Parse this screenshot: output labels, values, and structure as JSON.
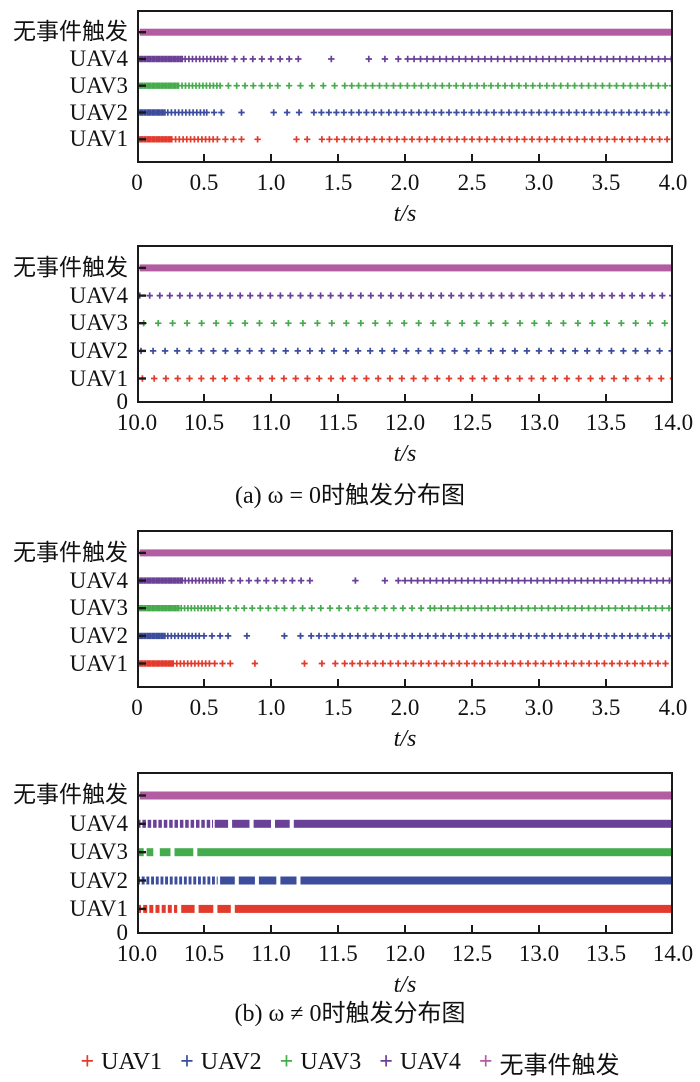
{
  "captions": {
    "a": "(a) ω = 0时触发分布图",
    "b": "(b) ω ≠ 0时触发分布图"
  },
  "legend": {
    "items": [
      {
        "label": "UAV1",
        "marker": "+",
        "color": "#e23a2c"
      },
      {
        "label": "UAV2",
        "marker": "+",
        "color": "#3c4d9e"
      },
      {
        "label": "UAV3",
        "marker": "+",
        "color": "#46ab4c"
      },
      {
        "label": "UAV4",
        "marker": "+",
        "color": "#6b4097"
      },
      {
        "label": "无事件触发",
        "marker": "+",
        "color": "#b25da2"
      }
    ]
  },
  "chart_data": [
    {
      "id": "a-early",
      "type": "scatter",
      "title": "",
      "xlabel": "t/s",
      "xlim": [
        0,
        4.0
      ],
      "xticks": {
        "values": [
          0,
          0.5,
          1.0,
          1.5,
          2.0,
          2.5,
          3.0,
          3.5,
          4.0
        ],
        "labels": [
          "0",
          "0.5",
          "1.0",
          "1.5",
          "2.0",
          "2.5",
          "3.0",
          "3.5",
          "4.0"
        ]
      },
      "ytick0": null,
      "grid": false,
      "rows": [
        {
          "label": "无事件触发",
          "color": "#b25da2",
          "marker": "+",
          "bands": [
            [
              0.02,
              4.0
            ]
          ]
        },
        {
          "label": "UAV4",
          "color": "#6b4097",
          "marker": "+",
          "markers_segments": [
            [
              0,
              0.35,
              0.013
            ],
            [
              0.36,
              0.64,
              0.027
            ],
            [
              0.66,
              1.26,
              0.068
            ],
            [
              2.02,
              4.0,
              0.048
            ]
          ],
          "markers_extra": [
            1.45,
            1.73,
            1.85,
            1.95
          ]
        },
        {
          "label": "UAV3",
          "color": "#46ab4c",
          "marker": "+",
          "markers_segments": [
            [
              0,
              0.3,
              0.013
            ],
            [
              0.31,
              0.6,
              0.026
            ],
            [
              0.62,
              1.0,
              0.062
            ],
            [
              1.05,
              1.5,
              0.085
            ],
            [
              1.55,
              4.0,
              0.052
            ]
          ]
        },
        {
          "label": "UAV2",
          "color": "#3c4d9e",
          "marker": "+",
          "markers_segments": [
            [
              0,
              0.22,
              0.013
            ],
            [
              0.23,
              0.5,
              0.027
            ],
            [
              0.52,
              0.68,
              0.055
            ],
            [
              1.32,
              4.0,
              0.056
            ]
          ],
          "markers_extra": [
            0.78,
            1.02,
            1.12,
            1.21
          ]
        },
        {
          "label": "UAV1",
          "color": "#e23a2c",
          "marker": "+",
          "markers_segments": [
            [
              0,
              0.25,
              0.013
            ],
            [
              0.26,
              0.58,
              0.028
            ],
            [
              0.6,
              0.78,
              0.06
            ],
            [
              1.38,
              4.0,
              0.056
            ]
          ],
          "markers_extra": [
            0.9,
            1.19,
            1.27
          ]
        }
      ]
    },
    {
      "id": "a-late",
      "type": "scatter",
      "title": "",
      "xlabel": "t/s",
      "xlim": [
        10.0,
        14.0
      ],
      "xticks": {
        "values": [
          10.0,
          10.5,
          11.0,
          11.5,
          12.0,
          12.5,
          13.0,
          13.5,
          14.0
        ],
        "labels": [
          "10.0",
          "10.5",
          "11.0",
          "11.5",
          "12.0",
          "12.5",
          "13.0",
          "13.5",
          "14.0"
        ]
      },
      "ytick0": "0",
      "grid": false,
      "rows": [
        {
          "label": "无事件触发",
          "color": "#b25da2",
          "marker": "+",
          "bands": [
            [
              10.02,
              14.0
            ]
          ]
        },
        {
          "label": "UAV4",
          "color": "#6b4097",
          "marker": "+",
          "markers_segments": [
            [
              10.02,
              14.0,
              0.075
            ]
          ]
        },
        {
          "label": "UAV3",
          "color": "#46ab4c",
          "marker": "+",
          "markers_segments": [
            [
              10.05,
              14.0,
              0.108
            ]
          ]
        },
        {
          "label": "UAV2",
          "color": "#3c4d9e",
          "marker": "+",
          "markers_segments": [
            [
              10.03,
              14.0,
              0.09
            ]
          ]
        },
        {
          "label": "UAV1",
          "color": "#e23a2c",
          "marker": "+",
          "markers_segments": [
            [
              10.04,
              14.0,
              0.088
            ]
          ]
        }
      ]
    },
    {
      "id": "b-early",
      "type": "scatter",
      "title": "",
      "xlabel": "t/s",
      "xlim": [
        0,
        4.0
      ],
      "xticks": {
        "values": [
          0,
          0.5,
          1.0,
          1.5,
          2.0,
          2.5,
          3.0,
          3.5,
          4.0
        ],
        "labels": [
          "0",
          "0.5",
          "1.0",
          "1.5",
          "2.0",
          "2.5",
          "3.0",
          "3.5",
          "4.0"
        ]
      },
      "ytick0": null,
      "grid": false,
      "rows": [
        {
          "label": "无事件触发",
          "color": "#b25da2",
          "marker": "+",
          "bands": [
            [
              0.02,
              4.0
            ]
          ]
        },
        {
          "label": "UAV4",
          "color": "#6b4097",
          "marker": "+",
          "markers_segments": [
            [
              0,
              0.35,
              0.013
            ],
            [
              0.36,
              0.62,
              0.026
            ],
            [
              0.64,
              1.32,
              0.065
            ],
            [
              2.0,
              4.0,
              0.047
            ]
          ],
          "markers_extra": [
            1.63,
            1.85,
            1.95
          ]
        },
        {
          "label": "UAV3",
          "color": "#46ab4c",
          "marker": "+",
          "markers_segments": [
            [
              0,
              0.32,
              0.013
            ],
            [
              0.33,
              0.6,
              0.025
            ],
            [
              0.62,
              1.05,
              0.06
            ],
            [
              1.1,
              2.2,
              0.068
            ],
            [
              2.22,
              4.0,
              0.05
            ]
          ]
        },
        {
          "label": "UAV2",
          "color": "#3c4d9e",
          "marker": "+",
          "markers_segments": [
            [
              0,
              0.22,
              0.013
            ],
            [
              0.23,
              0.48,
              0.026
            ],
            [
              0.5,
              0.7,
              0.06
            ],
            [
              1.3,
              4.0,
              0.058
            ]
          ],
          "markers_extra": [
            0.82,
            1.1,
            1.22
          ]
        },
        {
          "label": "UAV1",
          "color": "#e23a2c",
          "marker": "+",
          "markers_segments": [
            [
              0,
              0.26,
              0.013
            ],
            [
              0.27,
              0.56,
              0.027
            ],
            [
              0.58,
              0.75,
              0.058
            ],
            [
              1.55,
              4.0,
              0.057
            ]
          ],
          "markers_extra": [
            0.88,
            1.25,
            1.38,
            1.48
          ]
        }
      ]
    },
    {
      "id": "b-late",
      "type": "scatter",
      "title": "",
      "xlabel": "t/s",
      "xlim": [
        10.0,
        14.0
      ],
      "xticks": {
        "values": [
          10.0,
          10.5,
          11.0,
          11.5,
          12.0,
          12.5,
          13.0,
          13.5,
          14.0
        ],
        "labels": [
          "10.0",
          "10.5",
          "11.0",
          "11.5",
          "12.0",
          "12.5",
          "13.0",
          "13.5",
          "14.0"
        ]
      },
      "ytick0": "0",
      "grid": false,
      "rows": [
        {
          "label": "无事件触发",
          "color": "#b25da2",
          "marker": "+",
          "bands": [
            [
              10.02,
              14.0
            ]
          ]
        },
        {
          "label": "UAV4",
          "color": "#6b4097",
          "marker": "+",
          "dash_bands": [
            {
              "from": 10.0,
              "to": 10.56,
              "dash": 0.026,
              "gap": 0.014
            }
          ],
          "bands": [
            [
              10.58,
              10.68
            ],
            [
              10.71,
              10.84
            ],
            [
              10.87,
              11.0
            ],
            [
              11.03,
              11.14
            ],
            [
              11.17,
              14.0
            ]
          ]
        },
        {
          "label": "UAV3",
          "color": "#46ab4c",
          "marker": "+",
          "dash_bands": [
            {
              "from": 10.0,
              "to": 10.14,
              "dash": 0.05,
              "gap": 0.022
            }
          ],
          "bands": [
            [
              10.17,
              10.25
            ],
            [
              10.28,
              10.42
            ],
            [
              10.45,
              14.0
            ]
          ]
        },
        {
          "label": "UAV2",
          "color": "#3c4d9e",
          "marker": "+",
          "dash_bands": [
            {
              "from": 10.0,
              "to": 10.6,
              "dash": 0.022,
              "gap": 0.013
            }
          ],
          "bands": [
            [
              10.62,
              10.73
            ],
            [
              10.76,
              10.88
            ],
            [
              10.91,
              11.04
            ],
            [
              11.07,
              11.19
            ],
            [
              11.22,
              14.0
            ]
          ]
        },
        {
          "label": "UAV1",
          "color": "#e23a2c",
          "marker": "+",
          "dash_bands": [
            {
              "from": 10.0,
              "to": 10.3,
              "dash": 0.03,
              "gap": 0.016
            }
          ],
          "bands": [
            [
              10.33,
              10.43
            ],
            [
              10.46,
              10.57
            ],
            [
              10.6,
              10.7
            ],
            [
              10.73,
              14.0
            ]
          ]
        }
      ]
    }
  ]
}
